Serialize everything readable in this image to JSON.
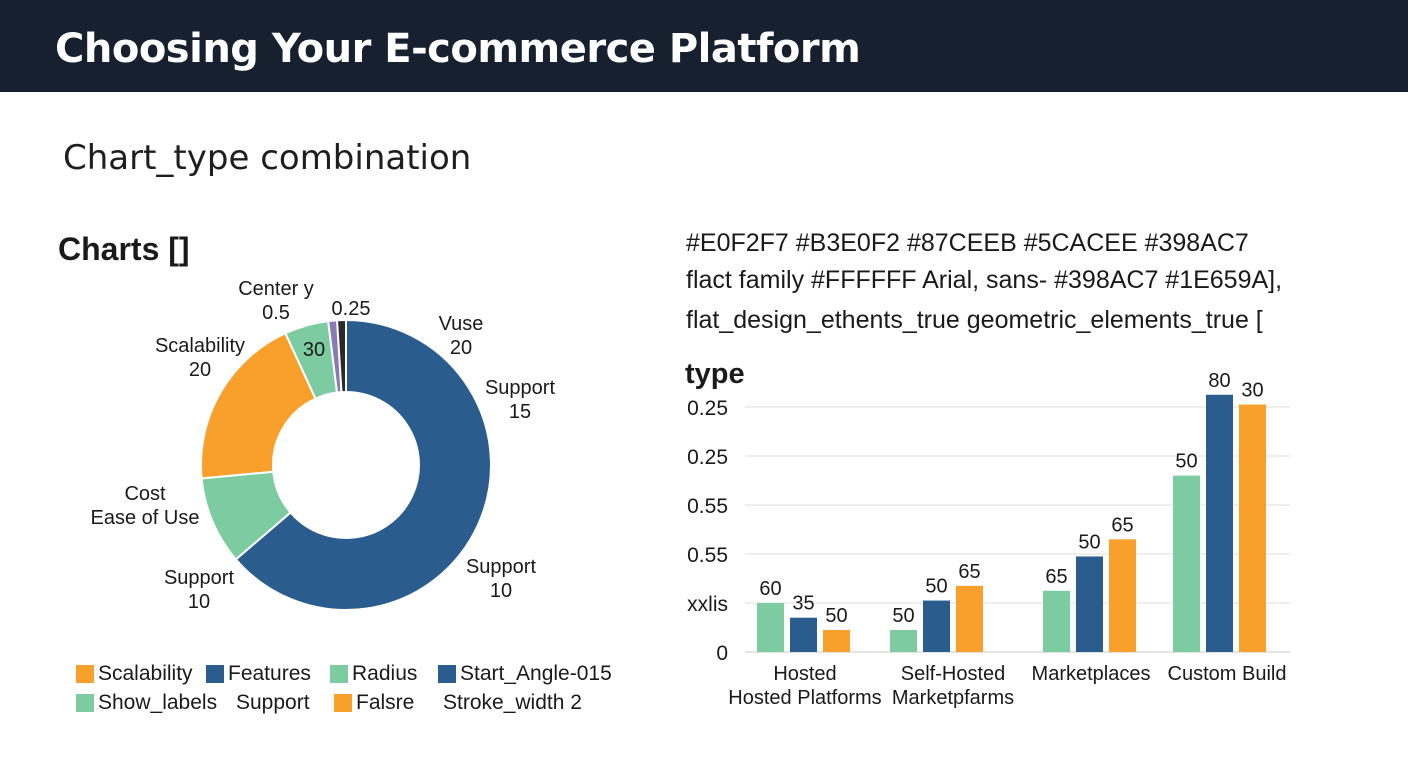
{
  "header": {
    "title": "Choosing Your E-commerce Platform"
  },
  "subtitle": "Chart_type  combination",
  "left_heading": "Charts []",
  "config_lines": [
    "#E0F2F7   #B3E0F2  #87CEEB  #5CACEE  #398AC7",
    "flact family #FFFFFF   Arial, sans- #398AC7   #1E659A],",
    "flat_design_ethents_true   geometric_elements_true ["
  ],
  "legend": [
    {
      "label": "Scalability",
      "color": "#F8A02B"
    },
    {
      "label": "Features",
      "color": "#2A5D8E"
    },
    {
      "label": "Radius",
      "color": "#7DCBA0"
    },
    {
      "label": "Start_Angle-015",
      "color": "#2A5D8E"
    },
    {
      "label": "Show_labels",
      "color": "#7DCBA0"
    },
    {
      "label": "Support",
      "color": ""
    },
    {
      "label": "Falsre",
      "color": "#F8A02B"
    },
    {
      "label": "Stroke_width 2",
      "color": ""
    }
  ],
  "chart_data": [
    {
      "type": "pie",
      "donut": true,
      "slices": [
        {
          "value": 65,
          "color": "#2A5D8E"
        },
        {
          "value": 10,
          "color": "#7DCBA0"
        },
        {
          "value": 20,
          "color": "#F8A02B"
        },
        {
          "value": 5,
          "color": "#7DCBA0"
        },
        {
          "value": 1,
          "color": "#8A7BB5"
        },
        {
          "value": 1,
          "color": "#2A2A2A"
        }
      ],
      "labels": [
        {
          "lines": [
            "Vuse",
            "20"
          ]
        },
        {
          "lines": [
            "Support",
            "15"
          ]
        },
        {
          "lines": [
            "Support",
            "10"
          ]
        },
        {
          "lines": [
            "Support",
            "10"
          ]
        },
        {
          "lines": [
            "Cost",
            "Ease of Use"
          ]
        },
        {
          "lines": [
            "Scalability",
            "20"
          ]
        },
        {
          "lines": [
            "Center y",
            "0.5"
          ]
        },
        {
          "lines": [
            "30"
          ]
        },
        {
          "lines": [
            "0.25"
          ]
        }
      ]
    },
    {
      "type": "bar",
      "title": "type",
      "categories": [
        [
          "Hosted",
          "Hosted Platforms"
        ],
        [
          "Self-Hosted",
          "Marketpfarms"
        ],
        [
          "Marketplaces"
        ],
        [
          "Custom Build"
        ]
      ],
      "series": [
        {
          "values": [
            60,
            50,
            65,
            50
          ],
          "color": "#7DCBA0"
        },
        {
          "values": [
            35,
            50,
            50,
            80
          ],
          "color": "#2A5D8E"
        },
        {
          "values": [
            50,
            65,
            65,
            30
          ],
          "color": "#F8A02B"
        }
      ],
      "bar_heights": [
        [
          20,
          9,
          25,
          72
        ],
        [
          14,
          21,
          39,
          105
        ],
        [
          9,
          27,
          46,
          101
        ]
      ],
      "ytick_labels": [
        "0",
        "xxlis",
        "0.55",
        "0.55",
        "0.25",
        "0.25"
      ],
      "grid": true
    }
  ]
}
